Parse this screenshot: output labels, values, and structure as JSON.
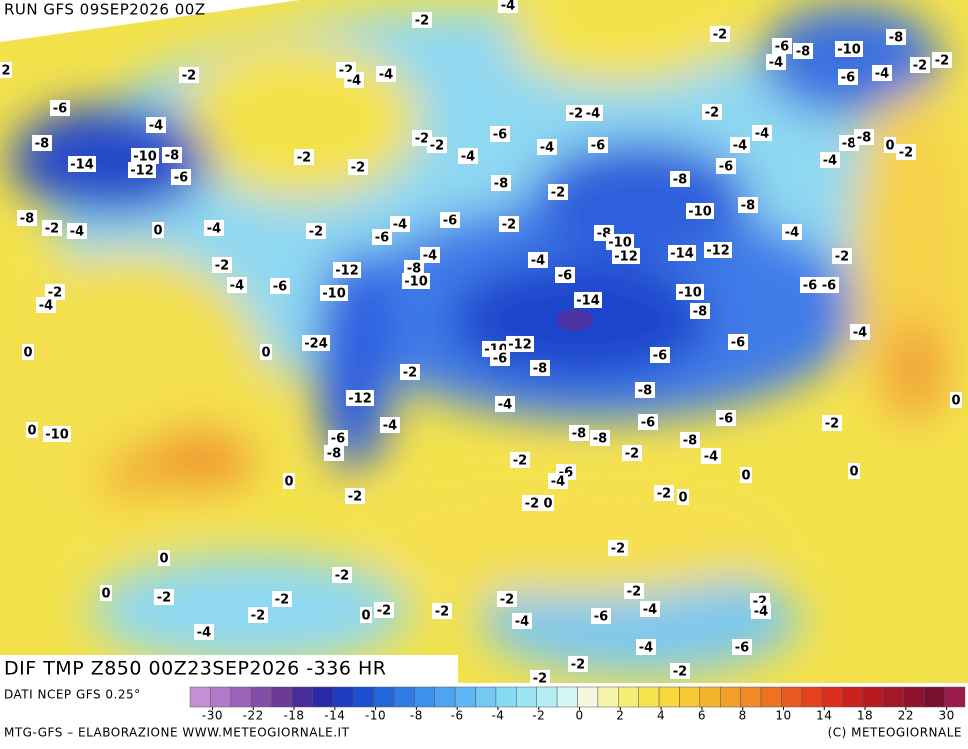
{
  "header": {
    "run": "RUN GFS 09SEP2026 00Z"
  },
  "map": {
    "title": "DIF TMP Z850 00Z23SEP2026 -336 HR",
    "labels": [
      -2,
      -4,
      -2,
      -6,
      -8,
      -10,
      -8,
      -4,
      -6,
      -4,
      -2,
      -2,
      -2,
      -2,
      -4,
      -4,
      2,
      -6,
      -4,
      -8,
      -14,
      -12,
      -10,
      -8,
      -6,
      -2,
      -4,
      -2,
      -2,
      -2,
      -6,
      -4,
      -6,
      -4,
      -4,
      -8,
      -8,
      0,
      -2,
      -4,
      -2,
      -2,
      -4,
      -8,
      -2,
      -6,
      -8,
      -8,
      -2,
      -4,
      0,
      -4,
      -2,
      -6,
      -4,
      -6,
      -2,
      -10,
      -8,
      -8,
      -10,
      -12,
      -14,
      -12,
      -4,
      -2,
      -2,
      -4,
      -6,
      -12,
      -8,
      -10,
      -4,
      -4,
      -6,
      -6,
      -6,
      -2,
      -4,
      -10,
      -14,
      -10,
      -8,
      -4,
      -6,
      0,
      0,
      -24,
      -10,
      -12,
      -6,
      -8,
      -6,
      -2,
      -12,
      -4,
      -8,
      0,
      -4,
      -6,
      -6,
      -2,
      0,
      -10,
      -6,
      -8,
      -8,
      -8,
      -8,
      -2,
      -2,
      -4,
      -6,
      -4,
      0,
      0,
      0,
      -2,
      -2,
      0,
      -2,
      0,
      0,
      -2,
      -2,
      0,
      -2,
      -2,
      -2,
      -2,
      0,
      -2,
      -2,
      -2,
      -4,
      -4,
      -6,
      -2,
      -4,
      -4,
      -6,
      -4,
      -2,
      -2,
      -2
    ]
  },
  "legend": {
    "source": "DATI NCEP GFS 0.25°",
    "ticks": [
      -30,
      -22,
      -18,
      -14,
      -10,
      -8,
      -6,
      -4,
      -2,
      0,
      2,
      4,
      6,
      8,
      10,
      14,
      18,
      22,
      30
    ],
    "colors": [
      "#c58fd6",
      "#b07ac8",
      "#9a63b8",
      "#844ea8",
      "#6e3a98",
      "#4a2c9a",
      "#2a2aa8",
      "#1f3bbf",
      "#1d4fd0",
      "#2366dc",
      "#2f7ce6",
      "#3c90ee",
      "#4ca4f2",
      "#5fb8f4",
      "#72caf4",
      "#86daf4",
      "#9ce6f4",
      "#b4eef4",
      "#d2f6f6",
      "#f4f8e0",
      "#f6f4a8",
      "#f6ee74",
      "#f6e44a",
      "#f6d83a",
      "#f6c832",
      "#f4b42e",
      "#f2a02a",
      "#f08a26",
      "#ee7222",
      "#ea5a20",
      "#e4421e",
      "#dc2e1c",
      "#cc201e",
      "#b81a22",
      "#a41628",
      "#8e122c",
      "#7a1030",
      "#9c1a4c"
    ],
    "credit_left": "MTG-GFS – ELABORAZIONE WWW.METEOGIORNALE.IT",
    "credit_right": "(C) METEOGIORNALE"
  }
}
